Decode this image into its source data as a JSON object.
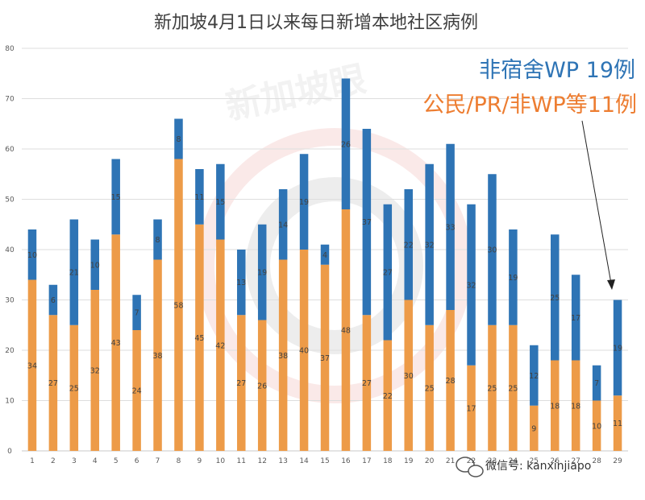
{
  "chart_data": {
    "type": "bar",
    "stacked": true,
    "title": "新加坡4月1日以来每日新增本地社区病例",
    "categories": [
      "1",
      "2",
      "3",
      "4",
      "5",
      "6",
      "7",
      "8",
      "9",
      "10",
      "11",
      "12",
      "13",
      "14",
      "15",
      "16",
      "17",
      "18",
      "19",
      "20",
      "21",
      "22",
      "23",
      "24",
      "25",
      "26",
      "27",
      "28",
      "29"
    ],
    "series": [
      {
        "values": [
          34,
          27,
          25,
          32,
          43,
          24,
          38,
          58,
          45,
          42,
          27,
          26,
          38,
          40,
          37,
          48,
          27,
          22,
          30,
          25,
          28,
          17,
          25,
          25,
          9,
          18,
          18,
          10,
          11
        ],
        "color": "#ed9b48"
      },
      {
        "values": [
          10,
          6,
          21,
          10,
          15,
          7,
          8,
          8,
          11,
          15,
          13,
          19,
          14,
          19,
          4,
          26,
          37,
          27,
          22,
          32,
          33,
          32,
          30,
          19,
          12,
          25,
          17,
          7,
          19
        ],
        "color": "#2e74b5"
      }
    ],
    "ylim": [
      0,
      80
    ],
    "yticks": [
      0,
      10,
      20,
      30,
      40,
      50,
      60,
      70,
      80
    ],
    "grid": true,
    "annotations": [
      {
        "text": "非宿舍WP 19例",
        "color": "#2e74b5",
        "points_to_category": "29"
      },
      {
        "text": "公民/PR/非WP等11例",
        "color": "#ed7d31"
      }
    ],
    "watermark_text": "新加坡眼",
    "wechat": "微信号: kanxinjiapo"
  }
}
